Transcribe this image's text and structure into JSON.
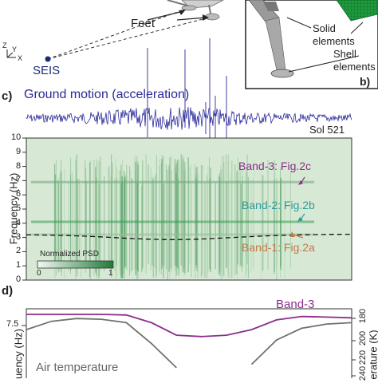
{
  "panel_a": {
    "feet_label": "Feet",
    "axes": {
      "z": "Z",
      "y": "Y",
      "x": "X"
    },
    "seis_label": "SEIS"
  },
  "panel_b": {
    "solid_label_line1": "Solid",
    "solid_label_line2": "elements",
    "shell_label_line1": "Shell",
    "shell_label_line2": "elements",
    "tag": "b)"
  },
  "panel_c": {
    "tag": "c)",
    "title": "Ground motion (acceleration)",
    "sol_label": "Sol 521",
    "ylabel": "Frequency (Hz)",
    "yticks": [
      "10",
      "9",
      "8",
      "7",
      "6",
      "5",
      "4",
      "3",
      "2",
      "1",
      "0"
    ],
    "band3": "Band-3: Fig.2c",
    "band2": "Band-2: Fig.2b",
    "band1": "Band-1: Fig.2a",
    "colorbar_title": "Normalized PSD",
    "colorbar_min": "0",
    "colorbar_max": "1",
    "colors": {
      "band3": "#8b2e8b",
      "band2": "#2e9a9a",
      "band1": "#c07a4a",
      "waveform": "#2a2a9a",
      "spectrogram_bg": "#d7e9d4"
    }
  },
  "panel_d": {
    "tag": "d)",
    "band3_label": "Band-3",
    "ylabel_left_partial": "uency (Hz)",
    "ylabel_right_partial": "erature (K)",
    "left_ticks": [
      "7.5"
    ],
    "right_ticks": [
      "180",
      "200",
      "220",
      "240"
    ],
    "air_temp_label": "Air temperature",
    "colors": {
      "band3_line": "#8b2e8b",
      "air_temp_line": "#707070"
    }
  },
  "chart_data": [
    {
      "type": "heatmap",
      "title": "Ground motion (acceleration)",
      "ylabel": "Frequency (Hz)",
      "ylim": [
        0,
        10
      ],
      "yticks": [
        0,
        1,
        2,
        3,
        4,
        5,
        6,
        7,
        8,
        9,
        10
      ],
      "colorbar": {
        "title": "Normalized PSD",
        "range": [
          0,
          1
        ]
      },
      "bands": [
        {
          "name": "Band-3: Fig.2c",
          "frequency_hz": 6.9
        },
        {
          "name": "Band-2: Fig.2b",
          "frequency_hz": 4.1
        },
        {
          "name": "Band-1: Fig.2a",
          "frequency_hz": 3.2
        }
      ]
    },
    {
      "type": "line",
      "series": [
        {
          "name": "Band-3",
          "values": [
            0.92,
            0.92,
            0.92,
            0.92,
            0.91,
            0.8,
            0.62,
            0.6,
            0.62,
            0.7,
            0.84,
            0.89,
            0.88,
            0.87
          ]
        },
        {
          "name": "Air temperature",
          "values": [
            0.7,
            0.82,
            0.86,
            0.85,
            0.8,
            0.5,
            0.15,
            null,
            null,
            0.2,
            0.55,
            0.72,
            0.78,
            0.8
          ]
        }
      ],
      "right_ticks": [
        180,
        200,
        220,
        240
      ]
    }
  ]
}
